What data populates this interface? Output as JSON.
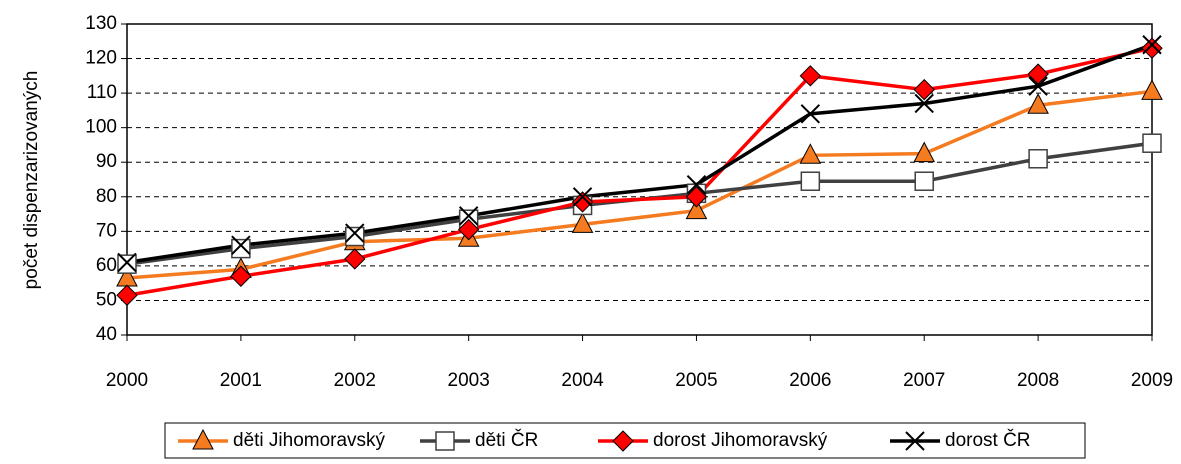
{
  "chart_data": {
    "type": "line",
    "y_label": "počet dispenzarizovaných",
    "x": [
      2000,
      2001,
      2002,
      2003,
      2004,
      2005,
      2006,
      2007,
      2008,
      2009
    ],
    "xlim": [
      2000,
      2009
    ],
    "xticks": [
      2000,
      2001,
      2002,
      2003,
      2004,
      2005,
      2006,
      2007,
      2008,
      2009
    ],
    "ylim": [
      40,
      130
    ],
    "yticks": [
      40,
      50,
      60,
      70,
      80,
      90,
      100,
      110,
      120,
      130
    ],
    "grid": true,
    "legend": "bottom",
    "series": [
      {
        "name": "děti Jihomoravský",
        "color": "#f47b20",
        "marker": "triangle",
        "values": [
          56.5,
          59,
          67,
          68,
          72,
          76,
          92,
          92.5,
          106.5,
          110.5
        ]
      },
      {
        "name": "děti ČR",
        "color": "#404040",
        "marker": "square",
        "values": [
          60.5,
          65,
          68.5,
          73.5,
          77.5,
          81,
          84.5,
          84.5,
          91,
          95.5
        ]
      },
      {
        "name": "dorost Jihomoravský",
        "color": "#ff0000",
        "marker": "diamond",
        "values": [
          51.5,
          57,
          62,
          70.5,
          78.5,
          80,
          115,
          111,
          115.5,
          123
        ]
      },
      {
        "name": "dorost ČR",
        "color": "#000000",
        "marker": "x",
        "values": [
          61,
          66,
          69.5,
          74.5,
          80,
          83.5,
          104,
          107,
          112,
          124
        ]
      }
    ]
  }
}
